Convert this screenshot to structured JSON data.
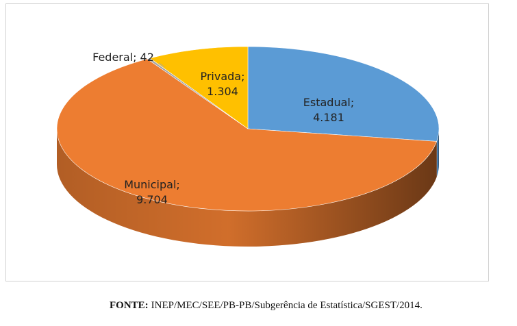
{
  "chart_data": {
    "type": "pie3d",
    "categories": [
      "Estadual",
      "Municipal",
      "Federal",
      "Privada"
    ],
    "values": [
      4181,
      9704,
      42,
      1304
    ],
    "value_labels": [
      "4.181",
      "9.704",
      "42",
      "1.304"
    ],
    "colors": [
      "#5b9bd5",
      "#ed7d31",
      "#a5a5a5",
      "#ffc000"
    ],
    "label_separator": ";",
    "source_label": "FONTE:",
    "source": "INEP/MEC/SEE/PB-PB/Subgerência de Estatística/SGEST/2014."
  }
}
